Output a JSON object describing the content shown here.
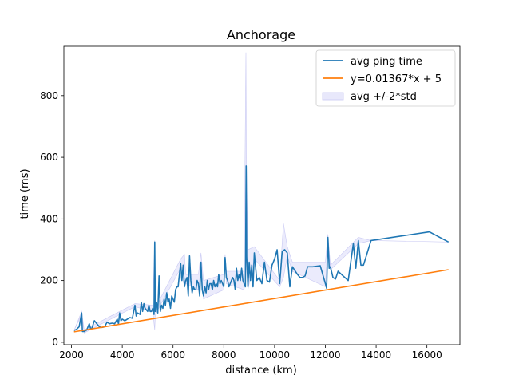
{
  "chart_data": {
    "type": "line",
    "title": "Anchorage",
    "xlabel": "distance (km)",
    "ylabel": "time (ms)",
    "xlim": [
      1700,
      17300
    ],
    "ylim": [
      -8,
      960
    ],
    "xticks": [
      2000,
      4000,
      6000,
      8000,
      10000,
      12000,
      14000,
      16000
    ],
    "yticks": [
      0,
      200,
      400,
      600,
      800
    ],
    "grid": false,
    "legend_position": "top-right",
    "colors": {
      "avg": "#1f77b4",
      "fit": "#ff7f0e",
      "band_fill": "#e8e8fb",
      "band_edge": "#c9c9f3"
    },
    "series": [
      {
        "name": "avg ping time",
        "kind": "line",
        "color": "#1f77b4",
        "points": [
          [
            2100,
            38
          ],
          [
            2200,
            42
          ],
          [
            2300,
            50
          ],
          [
            2400,
            95
          ],
          [
            2430,
            35
          ],
          [
            2500,
            35
          ],
          [
            2600,
            40
          ],
          [
            2700,
            60
          ],
          [
            2750,
            45
          ],
          [
            2800,
            45
          ],
          [
            2900,
            70
          ],
          [
            3000,
            60
          ],
          [
            3100,
            50
          ],
          [
            3200,
            48
          ],
          [
            3300,
            50
          ],
          [
            3400,
            65
          ],
          [
            3500,
            60
          ],
          [
            3600,
            62
          ],
          [
            3700,
            60
          ],
          [
            3800,
            75
          ],
          [
            3850,
            60
          ],
          [
            3900,
            95
          ],
          [
            3950,
            70
          ],
          [
            4000,
            75
          ],
          [
            4100,
            70
          ],
          [
            4200,
            75
          ],
          [
            4300,
            80
          ],
          [
            4400,
            78
          ],
          [
            4500,
            120
          ],
          [
            4550,
            85
          ],
          [
            4600,
            95
          ],
          [
            4700,
            90
          ],
          [
            4750,
            130
          ],
          [
            4800,
            100
          ],
          [
            4850,
            125
          ],
          [
            4900,
            110
          ],
          [
            5000,
            100
          ],
          [
            5050,
            120
          ],
          [
            5100,
            100
          ],
          [
            5150,
            100
          ],
          [
            5200,
            110
          ],
          [
            5250,
            90
          ],
          [
            5280,
            325
          ],
          [
            5300,
            100
          ],
          [
            5350,
            130
          ],
          [
            5400,
            95
          ],
          [
            5450,
            215
          ],
          [
            5500,
            100
          ],
          [
            5550,
            120
          ],
          [
            5600,
            110
          ],
          [
            5650,
            140
          ],
          [
            5700,
            120
          ],
          [
            5750,
            160
          ],
          [
            5800,
            130
          ],
          [
            5850,
            140
          ],
          [
            5900,
            110
          ],
          [
            5950,
            150
          ],
          [
            6000,
            140
          ],
          [
            6050,
            130
          ],
          [
            6100,
            170
          ],
          [
            6150,
            180
          ],
          [
            6200,
            180
          ],
          [
            6250,
            220
          ],
          [
            6300,
            255
          ],
          [
            6350,
            200
          ],
          [
            6400,
            250
          ],
          [
            6450,
            180
          ],
          [
            6500,
            200
          ],
          [
            6550,
            210
          ],
          [
            6600,
            150
          ],
          [
            6650,
            280
          ],
          [
            6700,
            200
          ],
          [
            6750,
            160
          ],
          [
            6800,
            180
          ],
          [
            6850,
            170
          ],
          [
            6900,
            170
          ],
          [
            6950,
            200
          ],
          [
            7000,
            190
          ],
          [
            7050,
            150
          ],
          [
            7100,
            260
          ],
          [
            7150,
            170
          ],
          [
            7200,
            150
          ],
          [
            7250,
            180
          ],
          [
            7300,
            160
          ],
          [
            7350,
            200
          ],
          [
            7400,
            170
          ],
          [
            7450,
            190
          ],
          [
            7500,
            190
          ],
          [
            7550,
            170
          ],
          [
            7600,
            200
          ],
          [
            7650,
            180
          ],
          [
            7700,
            190
          ],
          [
            7750,
            180
          ],
          [
            7800,
            220
          ],
          [
            7850,
            190
          ],
          [
            7900,
            200
          ],
          [
            7950,
            190
          ],
          [
            8000,
            180
          ],
          [
            8050,
            275
          ],
          [
            8100,
            210
          ],
          [
            8150,
            200
          ],
          [
            8200,
            180
          ],
          [
            8250,
            190
          ],
          [
            8300,
            200
          ],
          [
            8350,
            210
          ],
          [
            8400,
            200
          ],
          [
            8450,
            170
          ],
          [
            8500,
            240
          ],
          [
            8550,
            200
          ],
          [
            8600,
            220
          ],
          [
            8650,
            200
          ],
          [
            8700,
            240
          ],
          [
            8750,
            200
          ],
          [
            8800,
            190
          ],
          [
            8850,
            180
          ],
          [
            8880,
            572
          ],
          [
            8900,
            280
          ],
          [
            8950,
            180
          ],
          [
            9000,
            260
          ],
          [
            9050,
            200
          ],
          [
            9100,
            250
          ],
          [
            9150,
            180
          ],
          [
            9200,
            290
          ],
          [
            9300,
            200
          ],
          [
            9400,
            210
          ],
          [
            9500,
            190
          ],
          [
            9600,
            260
          ],
          [
            9700,
            200
          ],
          [
            9800,
            195
          ],
          [
            9900,
            250
          ],
          [
            10000,
            270
          ],
          [
            10100,
            300
          ],
          [
            10200,
            190
          ],
          [
            10300,
            295
          ],
          [
            10400,
            300
          ],
          [
            10500,
            290
          ],
          [
            10600,
            180
          ],
          [
            10700,
            245
          ],
          [
            10900,
            220
          ],
          [
            11000,
            210
          ],
          [
            11100,
            210
          ],
          [
            11200,
            215
          ],
          [
            11300,
            245
          ],
          [
            11500,
            245
          ],
          [
            11800,
            248
          ],
          [
            12000,
            190
          ],
          [
            12050,
            175
          ],
          [
            12100,
            340
          ],
          [
            12150,
            240
          ],
          [
            12200,
            245
          ],
          [
            12300,
            210
          ],
          [
            12400,
            205
          ],
          [
            12500,
            230
          ],
          [
            12700,
            215
          ],
          [
            12900,
            200
          ],
          [
            13100,
            320
          ],
          [
            13200,
            240
          ],
          [
            13300,
            330
          ],
          [
            13400,
            250
          ],
          [
            13500,
            250
          ],
          [
            13800,
            330
          ],
          [
            16100,
            358
          ],
          [
            16850,
            325
          ]
        ]
      },
      {
        "name": "y=0.01367*x + 5",
        "kind": "line",
        "color": "#ff7f0e",
        "slope": 0.01367,
        "intercept": 5,
        "x_range": [
          2100,
          16850
        ]
      },
      {
        "name": "avg +/-2*std",
        "kind": "band",
        "color": "#e8e8fb",
        "upper": [
          [
            2100,
            38
          ],
          [
            2400,
            100
          ],
          [
            2500,
            40
          ],
          [
            3900,
            100
          ],
          [
            4500,
            125
          ],
          [
            5200,
            120
          ],
          [
            5280,
            330
          ],
          [
            5300,
            110
          ],
          [
            6300,
            270
          ],
          [
            6450,
            285
          ],
          [
            6500,
            220
          ],
          [
            7000,
            220
          ],
          [
            7100,
            290
          ],
          [
            7200,
            200
          ],
          [
            8000,
            220
          ],
          [
            8050,
            285
          ],
          [
            8100,
            230
          ],
          [
            8800,
            230
          ],
          [
            8870,
            940
          ],
          [
            8890,
            580
          ],
          [
            8950,
            300
          ],
          [
            9200,
            310
          ],
          [
            10200,
            200
          ],
          [
            10350,
            385
          ],
          [
            10500,
            310
          ],
          [
            10700,
            260
          ],
          [
            12000,
            260
          ],
          [
            12100,
            350
          ],
          [
            12200,
            250
          ],
          [
            13300,
            340
          ],
          [
            13800,
            330
          ],
          [
            16850,
            325
          ]
        ],
        "lower": [
          [
            2100,
            38
          ],
          [
            2400,
            90
          ],
          [
            2500,
            30
          ],
          [
            3900,
            90
          ],
          [
            4500,
            115
          ],
          [
            5200,
            100
          ],
          [
            5280,
            40
          ],
          [
            5300,
            90
          ],
          [
            6300,
            240
          ],
          [
            6450,
            180
          ],
          [
            6500,
            190
          ],
          [
            7000,
            170
          ],
          [
            7100,
            240
          ],
          [
            7200,
            140
          ],
          [
            8000,
            170
          ],
          [
            8050,
            260
          ],
          [
            8100,
            190
          ],
          [
            8800,
            170
          ],
          [
            8870,
            220
          ],
          [
            8890,
            565
          ],
          [
            8950,
            170
          ],
          [
            9200,
            270
          ],
          [
            10200,
            180
          ],
          [
            10350,
            210
          ],
          [
            10500,
            280
          ],
          [
            10700,
            230
          ],
          [
            12000,
            180
          ],
          [
            12100,
            330
          ],
          [
            12200,
            235
          ],
          [
            13300,
            320
          ],
          [
            13800,
            330
          ],
          [
            16850,
            325
          ]
        ]
      }
    ]
  }
}
